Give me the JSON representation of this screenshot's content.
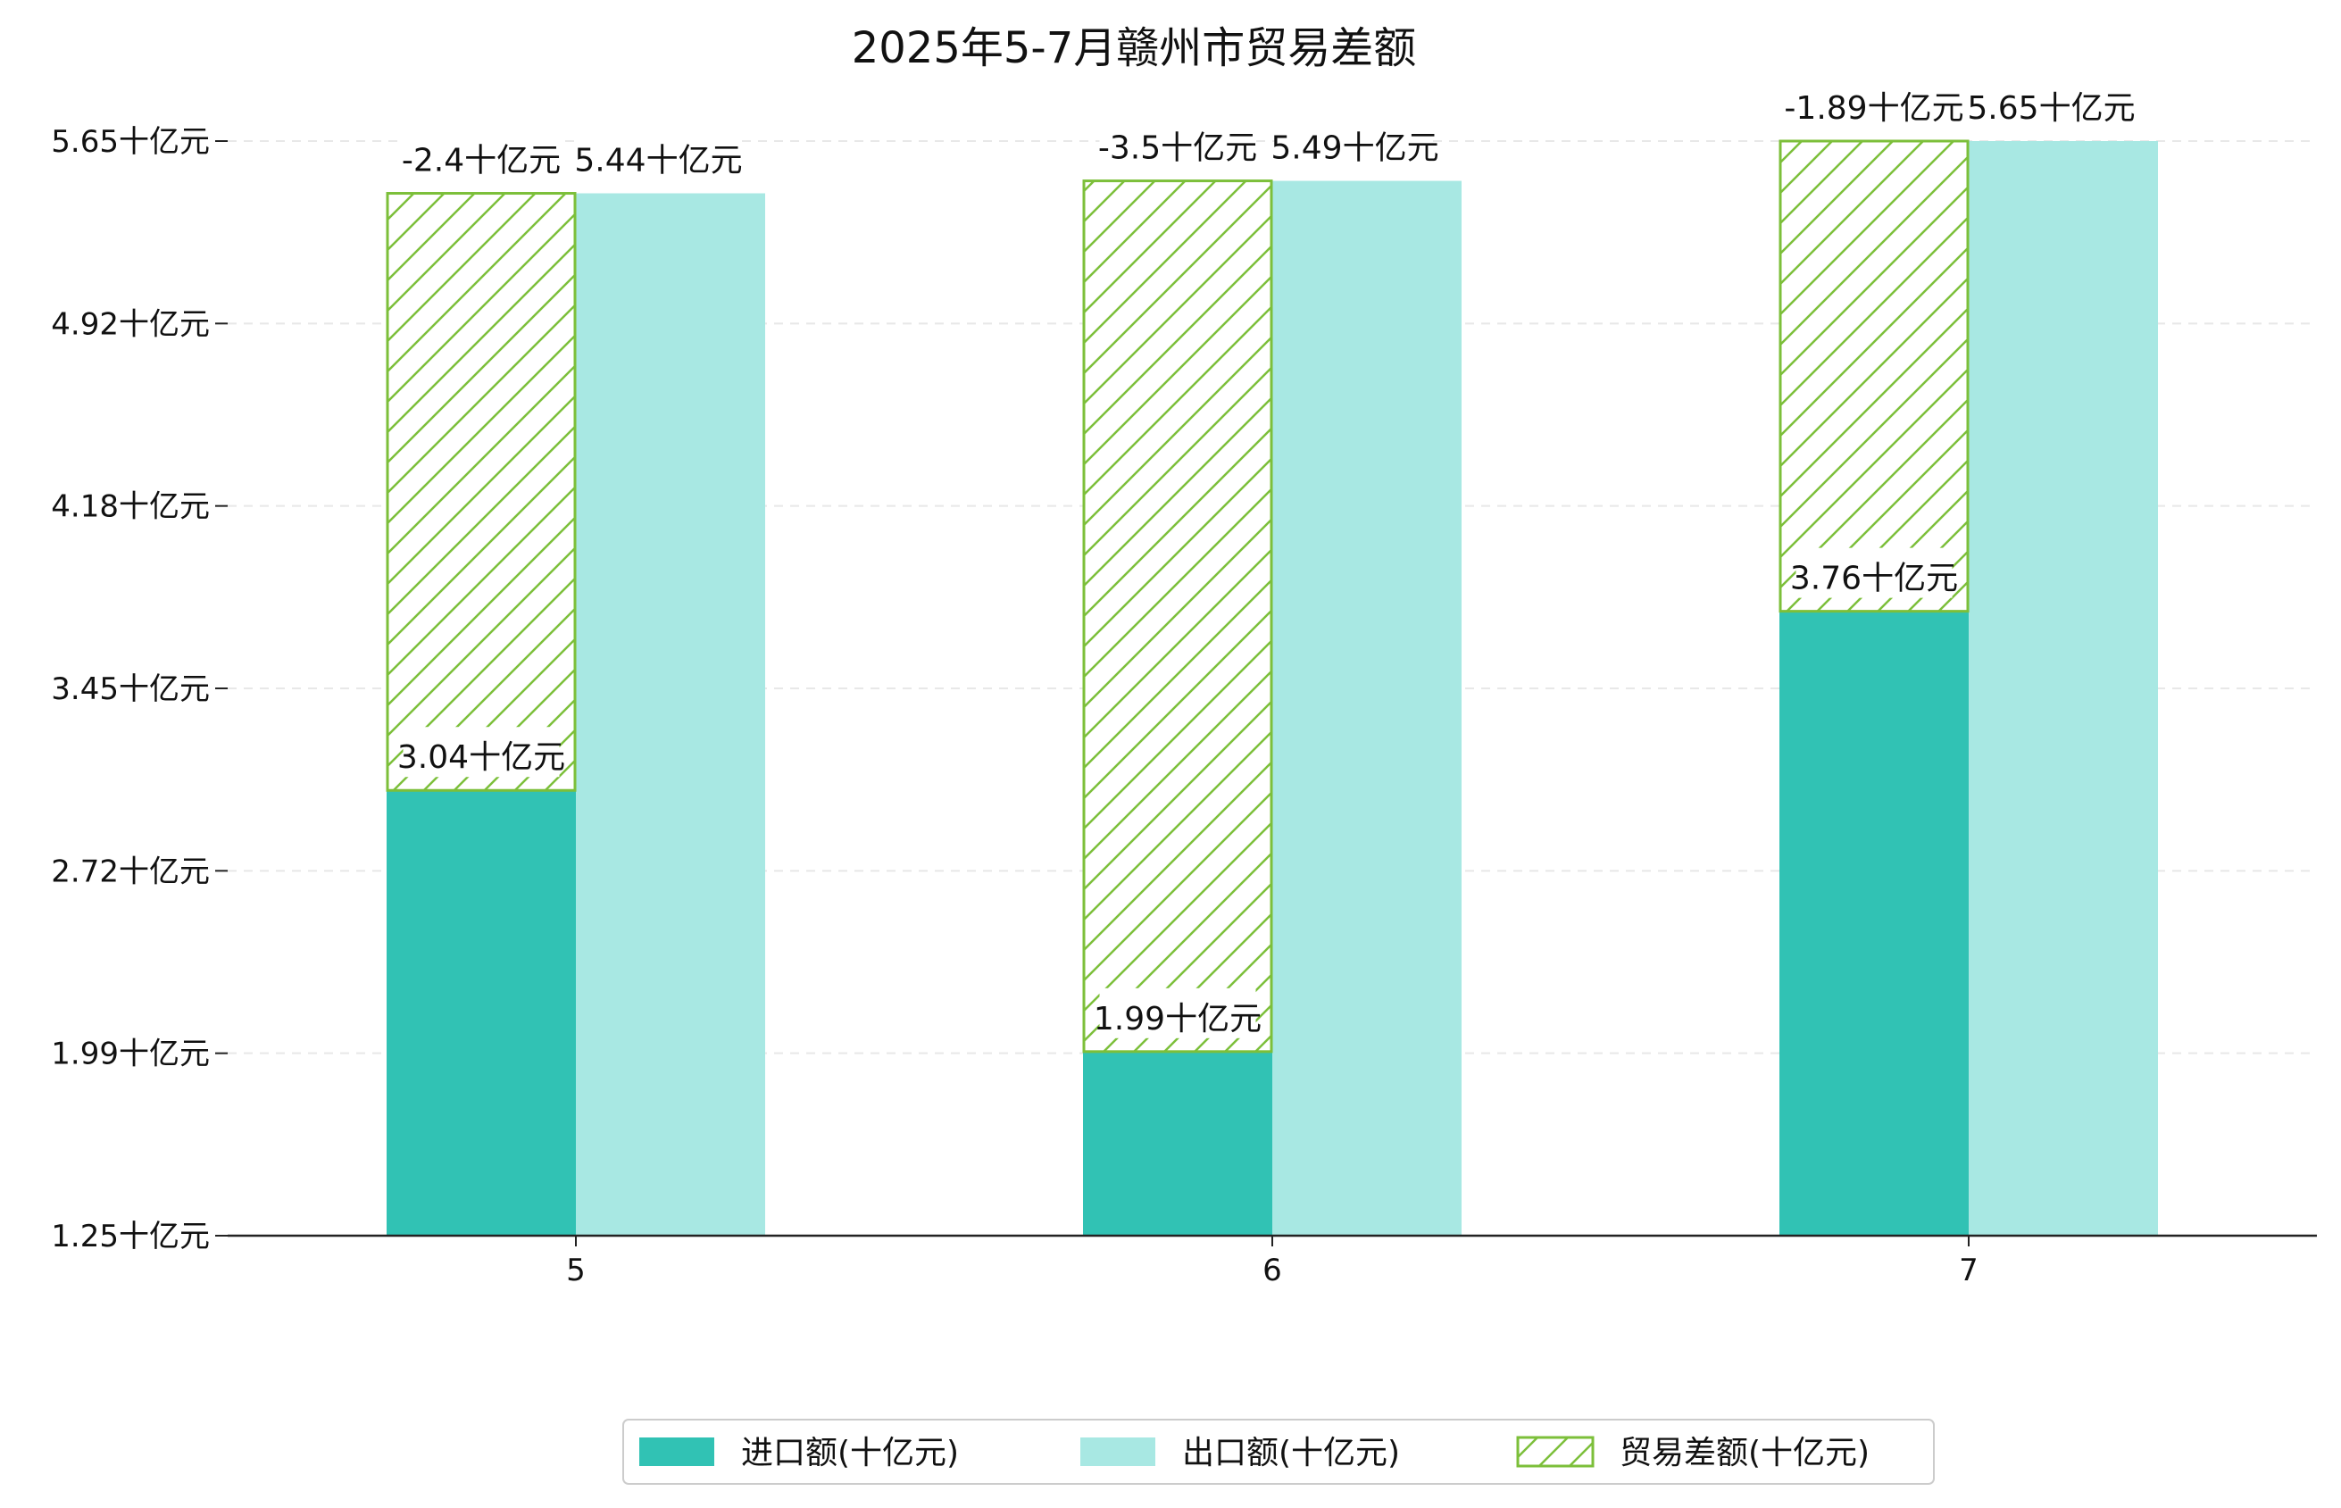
{
  "chart_data": {
    "type": "bar",
    "title": "2025年5-7月赣州市贸易差额",
    "categories": [
      "5",
      "6",
      "7"
    ],
    "ylim": [
      1.25,
      5.65
    ],
    "yticks": [
      "1.25十亿元",
      "1.99十亿元",
      "2.72十亿元",
      "3.45十亿元",
      "4.18十亿元",
      "4.92十亿元",
      "5.65十亿元"
    ],
    "series": [
      {
        "name": "进口额(十亿元)",
        "values": [
          3.04,
          1.99,
          3.76
        ],
        "labels": [
          "3.04十亿元",
          "1.99十亿元",
          "3.76十亿元"
        ]
      },
      {
        "name": "出口额(十亿元)",
        "values": [
          5.44,
          5.49,
          5.65
        ],
        "labels": [
          "5.44十亿元",
          "5.49十亿元",
          "5.65十亿元"
        ]
      },
      {
        "name": "贸易差额(十亿元)",
        "values": [
          -2.4,
          -3.5,
          -1.89
        ],
        "labels": [
          "-2.4十亿元",
          "-3.5十亿元",
          "-1.89十亿元"
        ]
      }
    ],
    "colors": {
      "import": "#31c2b4",
      "export": "#a8e8e3",
      "balance": "#7cbf3a",
      "axis": "#222222",
      "grid": "#e8e8e8"
    },
    "legend_position": "bottom-center",
    "grid": true
  }
}
